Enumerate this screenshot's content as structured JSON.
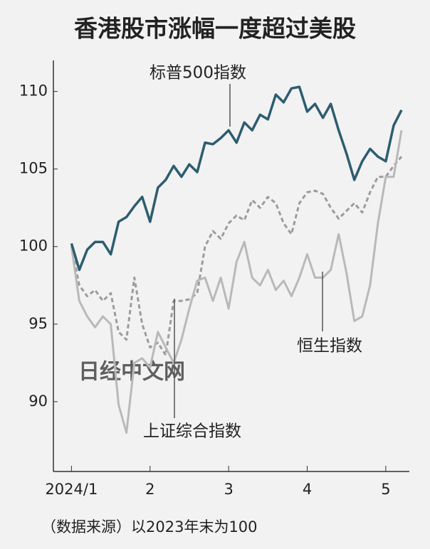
{
  "chart_data": {
    "type": "line",
    "title": "香港股市涨幅一度超过美股",
    "x": [
      1.0,
      1.1,
      1.2,
      1.3,
      1.4,
      1.5,
      1.6,
      1.7,
      1.8,
      1.9,
      2.0,
      2.1,
      2.2,
      2.3,
      2.4,
      2.5,
      2.6,
      2.7,
      2.8,
      2.9,
      3.0,
      3.1,
      3.2,
      3.3,
      3.4,
      3.5,
      3.6,
      3.7,
      3.8,
      3.9,
      4.0,
      4.1,
      4.2,
      4.3,
      4.4,
      4.5,
      4.6,
      4.7,
      4.8,
      4.9,
      5.0,
      5.1,
      5.2
    ],
    "series": [
      {
        "name": "标普500指数",
        "color": "#2d5d6f",
        "dash": false,
        "values": [
          100.2,
          98.5,
          99.8,
          100.3,
          100.3,
          99.5,
          101.6,
          101.9,
          102.6,
          103.2,
          101.6,
          103.8,
          104.3,
          105.2,
          104.5,
          105.3,
          104.8,
          106.7,
          106.6,
          107.0,
          107.5,
          106.7,
          108.0,
          107.5,
          108.5,
          108.2,
          109.8,
          109.3,
          110.2,
          110.3,
          108.7,
          109.2,
          108.3,
          109.2,
          107.5,
          106.0,
          104.3,
          105.5,
          106.3,
          105.8,
          105.5,
          107.8,
          108.8
        ]
      },
      {
        "name": "上证综合指数",
        "color": "#9c9c9c",
        "dash": true,
        "values": [
          100,
          97.5,
          96.8,
          97.2,
          96.5,
          97,
          94.5,
          94,
          98,
          95,
          93.5,
          93.8,
          93,
          96.5,
          96.5,
          96.6,
          97,
          100,
          101,
          100.5,
          101.5,
          102,
          101.7,
          103,
          102.5,
          103.2,
          102.8,
          101.5,
          100.8,
          102.8,
          103.5,
          103.6,
          103.4,
          102.5,
          101.8,
          102.3,
          102.8,
          102.2,
          103.5,
          104.5,
          104.5,
          105.2,
          105.8
        ]
      },
      {
        "name": "恒生指数",
        "color": "#b9b9b9",
        "dash": false,
        "values": [
          100,
          96.5,
          95.5,
          94.8,
          95.5,
          95,
          89.8,
          88,
          92.5,
          92.8,
          92.2,
          94.5,
          93.5,
          92.5,
          94,
          96,
          97.8,
          98,
          96.5,
          98,
          96,
          99,
          100.3,
          98,
          97.5,
          98.5,
          97.2,
          97.8,
          96.8,
          98,
          99.5,
          98,
          98,
          98.5,
          100.8,
          98.3,
          95.2,
          95.5,
          97.5,
          101.5,
          104.5,
          104.5,
          107.5
        ]
      }
    ],
    "xlim": [
      0.77,
      5.3
    ],
    "xticks": [
      {
        "value": 1,
        "label": "2024/1"
      },
      2,
      3,
      4,
      5
    ],
    "ylim": [
      85.5,
      112
    ],
    "yticks": [
      90,
      95,
      100,
      105,
      110
    ],
    "footnote": "（数据来源）以2023年末为100",
    "watermark": "日经中文网"
  }
}
